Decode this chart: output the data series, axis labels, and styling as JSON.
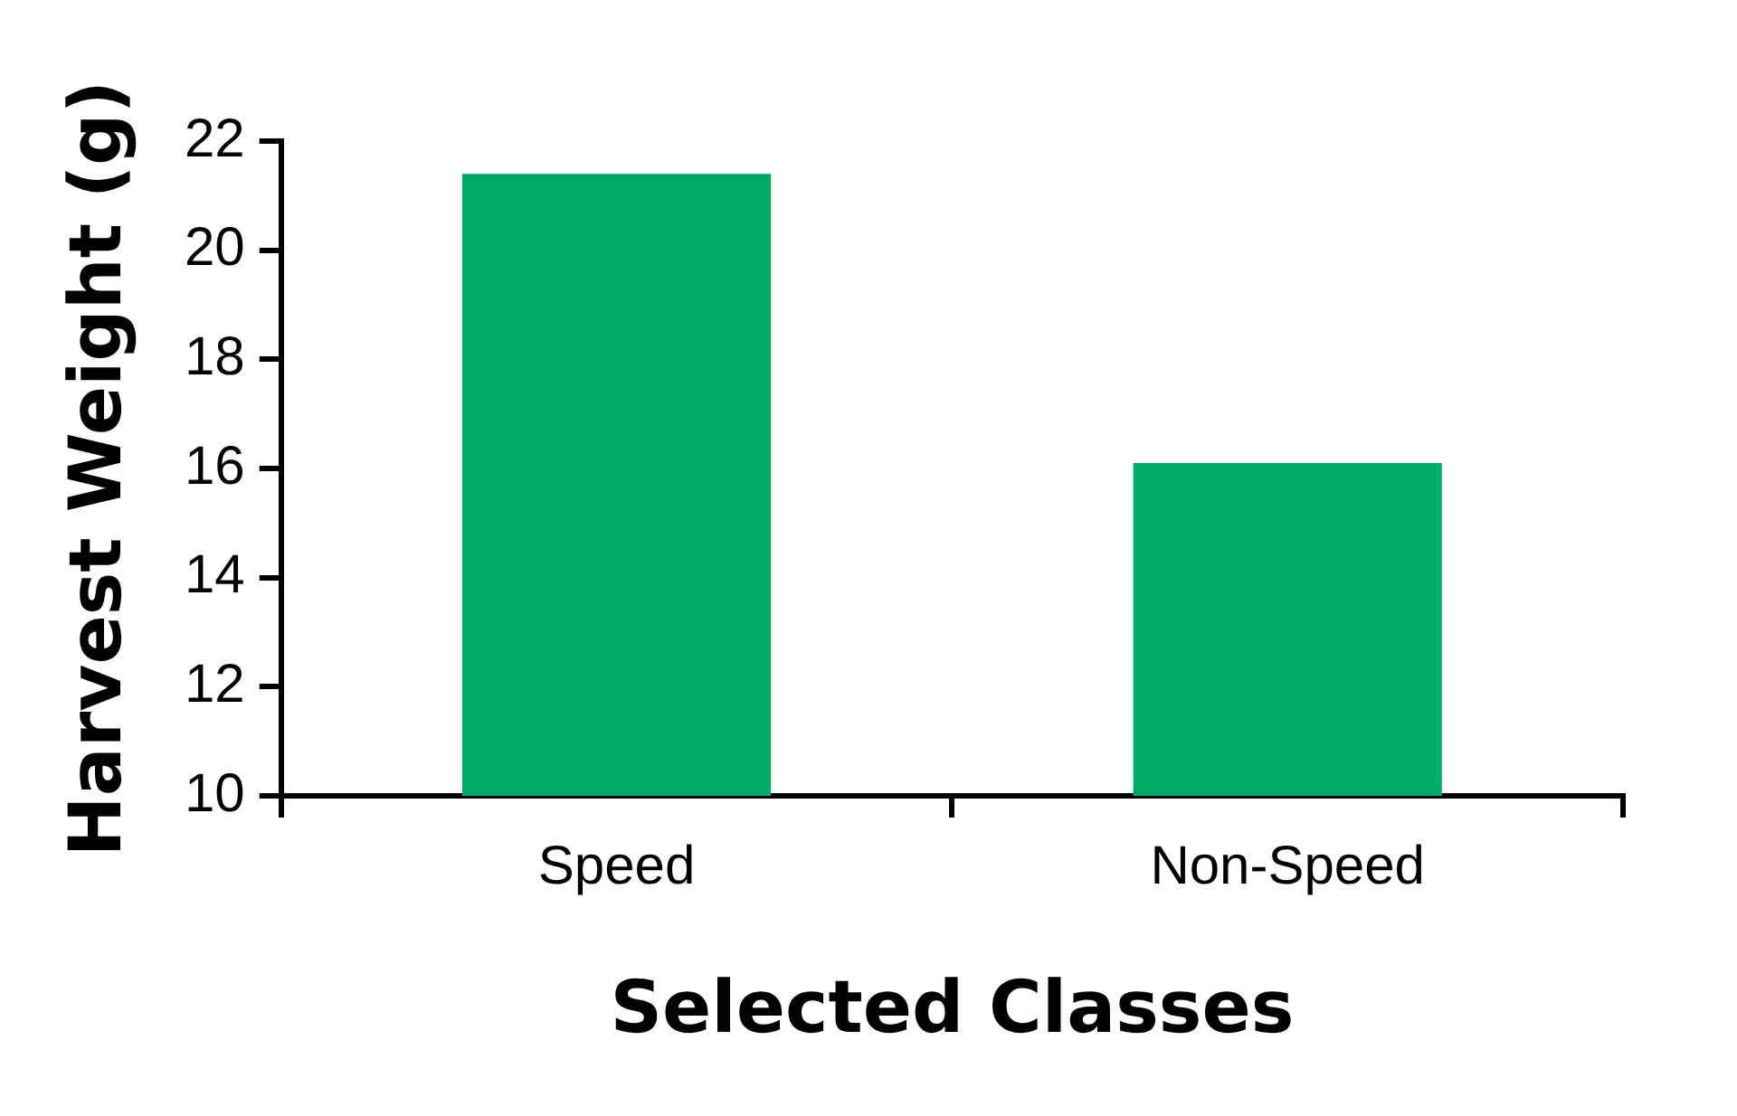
{
  "chart_data": {
    "type": "bar",
    "xlabel": "Selected Classes",
    "ylabel": "Harvest Weight (g)",
    "categories": [
      "Speed",
      "Non-Speed"
    ],
    "values": [
      21.4,
      16.1
    ],
    "color": "#00ab66",
    "ylim": [
      10,
      22
    ],
    "yticks": [
      10,
      12,
      14,
      16,
      18,
      20,
      22
    ],
    "grid": false,
    "legend": false
  }
}
